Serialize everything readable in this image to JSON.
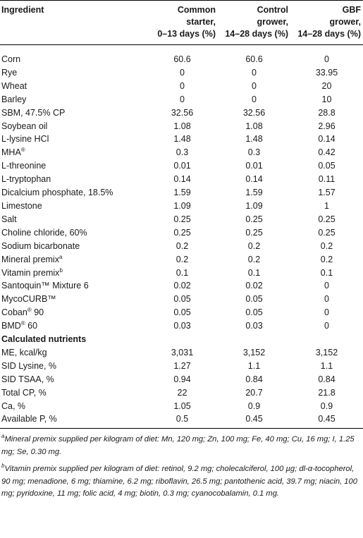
{
  "header": {
    "col1": "Ingredient",
    "col2_line1": "Common",
    "col2_line2": "starter,",
    "col2_line3": "0–13 days (%)",
    "col3_line1": "Control",
    "col3_line2": "grower,",
    "col3_line3": "14–28 days (%)",
    "col4_line1": "GBF",
    "col4_line2": "grower,",
    "col4_line3": "14–28 days (%)"
  },
  "rows": [
    {
      "name": "Corn",
      "sup": "",
      "suffix": "",
      "v1": "60.6",
      "v2": "60.6",
      "v3": "0"
    },
    {
      "name": "Rye",
      "sup": "",
      "suffix": "",
      "v1": "0",
      "v2": "0",
      "v3": "33.95"
    },
    {
      "name": "Wheat",
      "sup": "",
      "suffix": "",
      "v1": "0",
      "v2": "0",
      "v3": "20"
    },
    {
      "name": "Barley",
      "sup": "",
      "suffix": "",
      "v1": "0",
      "v2": "0",
      "v3": "10"
    },
    {
      "name": "SBM, 47.5% CP",
      "sup": "",
      "suffix": "",
      "v1": "32.56",
      "v2": "32.56",
      "v3": "28.8"
    },
    {
      "name": "Soybean oil",
      "sup": "",
      "suffix": "",
      "v1": "1.08",
      "v2": "1.08",
      "v3": "2.96"
    },
    {
      "name": "L-lysine HCl",
      "sup": "",
      "suffix": "",
      "v1": "1.48",
      "v2": "1.48",
      "v3": "0.14"
    },
    {
      "name": "MHA",
      "sup": "®",
      "suffix": "",
      "v1": "0.3",
      "v2": "0.3",
      "v3": "0.42"
    },
    {
      "name": "L-threonine",
      "sup": "",
      "suffix": "",
      "v1": "0.01",
      "v2": "0.01",
      "v3": "0.05"
    },
    {
      "name": "L-tryptophan",
      "sup": "",
      "suffix": "",
      "v1": "0.14",
      "v2": "0.14",
      "v3": "0.11"
    },
    {
      "name": "Dicalcium phosphate, 18.5%",
      "sup": "",
      "suffix": "",
      "v1": "1.59",
      "v2": "1.59",
      "v3": "1.57"
    },
    {
      "name": "Limestone",
      "sup": "",
      "suffix": "",
      "v1": "1.09",
      "v2": "1.09",
      "v3": "1"
    },
    {
      "name": "Salt",
      "sup": "",
      "suffix": "",
      "v1": "0.25",
      "v2": "0.25",
      "v3": "0.25"
    },
    {
      "name": "Choline chloride, 60%",
      "sup": "",
      "suffix": "",
      "v1": "0.25",
      "v2": "0.25",
      "v3": "0.25"
    },
    {
      "name": "Sodium bicarbonate",
      "sup": "",
      "suffix": "",
      "v1": "0.2",
      "v2": "0.2",
      "v3": "0.2"
    },
    {
      "name": "Mineral premix",
      "sup": "a",
      "suffix": "",
      "v1": "0.2",
      "v2": "0.2",
      "v3": "0.2"
    },
    {
      "name": "Vitamin premix",
      "sup": "b",
      "suffix": "",
      "v1": "0.1",
      "v2": "0.1",
      "v3": "0.1"
    },
    {
      "name": "Santoquin™ Mixture 6",
      "sup": "",
      "suffix": "",
      "v1": "0.02",
      "v2": "0.02",
      "v3": "0"
    },
    {
      "name": "MycoCURB™",
      "sup": "",
      "suffix": "",
      "v1": "0.05",
      "v2": "0.05",
      "v3": "0"
    },
    {
      "name": "Coban",
      "sup": "®",
      "suffix": " 90",
      "v1": "0.05",
      "v2": "0.05",
      "v3": "0"
    },
    {
      "name": "BMD",
      "sup": "®",
      "suffix": " 60",
      "v1": "0.03",
      "v2": "0.03",
      "v3": "0"
    }
  ],
  "section_label": "Calculated nutrients",
  "nutrients": [
    {
      "name": "ME, kcal/kg",
      "v1": "3,031",
      "v2": "3,152",
      "v3": "3,152"
    },
    {
      "name": "SID Lysine, %",
      "v1": "1.27",
      "v2": "1.1",
      "v3": "1.1"
    },
    {
      "name": "SID TSAA, %",
      "v1": "0.94",
      "v2": "0.84",
      "v3": "0.84"
    },
    {
      "name": "Total CP, %",
      "v1": "22",
      "v2": "20.7",
      "v3": "21.8"
    },
    {
      "name": "Ca, %",
      "v1": "1.05",
      "v2": "0.9",
      "v3": "0.9"
    },
    {
      "name": "Available P, %",
      "v1": "0.5",
      "v2": "0.45",
      "v3": "0.45"
    }
  ],
  "footnotes": {
    "a_mark": "a",
    "a_text": "Mineral premix supplied per kilogram of diet: Mn, 120 mg; Zn, 100 mg; Fe, 40 mg; Cu, 16 mg; I, 1.25 mg; Se, 0.30 mg.",
    "b_mark": "b",
    "b_text": "Vitamin premix supplied per kilogram of diet: retinol, 9.2 mg; cholecalciferol, 100 µg; dl-α-tocopherol, 90 mg; menadione, 6 mg; thiamine, 6.2 mg; riboflavin, 26.5 mg; pantothenic acid, 39.7 mg; niacin, 100 mg; pyridoxine, 11 mg; folic acid, 4 mg; biotin, 0.3 mg; cyanocobalamin, 0.1 mg."
  }
}
